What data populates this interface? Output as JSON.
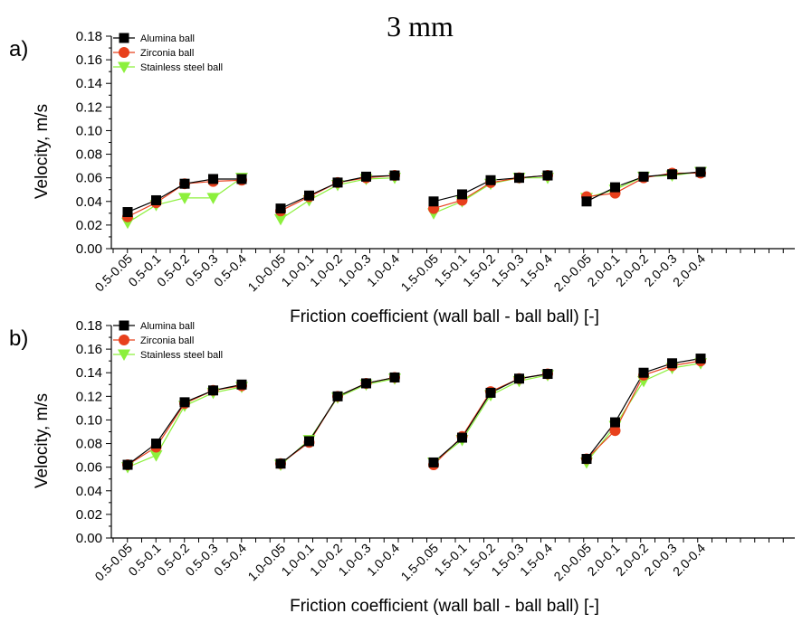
{
  "figure": {
    "title": "3 mm"
  },
  "chart_data": [
    {
      "type": "line",
      "panel_label": "a)",
      "title": "3 mm",
      "xlabel": "Friction coefficient (wall ball - ball ball) [-]",
      "ylabel": "Velocity, m/s",
      "ylim": [
        0,
        0.18
      ],
      "yticks": [
        "0.00",
        "0.02",
        "0.04",
        "0.06",
        "0.08",
        "0.10",
        "0.12",
        "0.14",
        "0.16",
        "0.18"
      ],
      "legend_position": "top-left",
      "grid": false,
      "groups": [
        [
          "0.5-0.05",
          "0.5-0.1",
          "0.5-0.2",
          "0.5-0.3",
          "0.5-0.4"
        ],
        [
          "1.0-0.05",
          "1.0-0.1",
          "1.0-0.2",
          "1.0-0.3",
          "1.0-0.4"
        ],
        [
          "1.5-0.05",
          "1.5-0.1",
          "1.5-0.2",
          "1.5-0.3",
          "1.5-0.4"
        ],
        [
          "2.0-0.05",
          "2.0-0.1",
          "2.0-0.2",
          "2.0-0.3",
          "2.0-0.4"
        ]
      ],
      "series": [
        {
          "name": "Alumina ball",
          "color": "#000000",
          "marker": "square",
          "values": [
            [
              0.031,
              0.041,
              0.055,
              0.059,
              0.059
            ],
            [
              0.034,
              0.045,
              0.056,
              0.061,
              0.062
            ],
            [
              0.04,
              0.046,
              0.058,
              0.06,
              0.062
            ],
            [
              0.04,
              0.052,
              0.061,
              0.063,
              0.065
            ]
          ]
        },
        {
          "name": "Zirconia ball",
          "color": "#e8401c",
          "marker": "circle",
          "values": [
            [
              0.027,
              0.039,
              0.055,
              0.057,
              0.058
            ],
            [
              0.032,
              0.044,
              0.056,
              0.06,
              0.062
            ],
            [
              0.034,
              0.041,
              0.056,
              0.06,
              0.062
            ],
            [
              0.044,
              0.047,
              0.06,
              0.064,
              0.064
            ]
          ]
        },
        {
          "name": "Stainless steel ball",
          "color": "#8cf03c",
          "marker": "triangle-down",
          "values": [
            [
              0.022,
              0.037,
              0.043,
              0.043,
              0.06
            ],
            [
              0.025,
              0.041,
              0.054,
              0.059,
              0.06
            ],
            [
              0.03,
              0.04,
              0.055,
              0.06,
              0.06
            ],
            [
              0.043,
              0.05,
              0.061,
              0.062,
              0.065
            ]
          ]
        }
      ]
    },
    {
      "type": "line",
      "panel_label": "b)",
      "xlabel": "Friction coefficient (wall ball - ball ball) [-]",
      "ylabel": "Velocity, m/s",
      "ylim": [
        0,
        0.18
      ],
      "yticks": [
        "0.00",
        "0.02",
        "0.04",
        "0.06",
        "0.08",
        "0.10",
        "0.12",
        "0.14",
        "0.16",
        "0.18"
      ],
      "legend_position": "top-left",
      "grid": false,
      "groups": [
        [
          "0.5-0.05",
          "0.5-0.1",
          "0.5-0.2",
          "0.5-0.3",
          "0.5-0.4"
        ],
        [
          "1.0-0.05",
          "1.0-0.1",
          "1.0-0.2",
          "1.0-0.3",
          "1.0-0.4"
        ],
        [
          "1.5-0.05",
          "1.5-0.1",
          "1.5-0.2",
          "1.5-0.3",
          "1.5-0.4"
        ],
        [
          "2.0-0.05",
          "2.0-0.1",
          "2.0-0.2",
          "2.0-0.3",
          "2.0-0.4"
        ]
      ],
      "series": [
        {
          "name": "Alumina ball",
          "color": "#000000",
          "marker": "square",
          "values": [
            [
              0.062,
              0.08,
              0.115,
              0.125,
              0.13
            ],
            [
              0.063,
              0.082,
              0.12,
              0.131,
              0.136
            ],
            [
              0.064,
              0.085,
              0.123,
              0.135,
              0.139
            ],
            [
              0.067,
              0.098,
              0.14,
              0.148,
              0.152
            ]
          ]
        },
        {
          "name": "Zirconia ball",
          "color": "#e8401c",
          "marker": "circle",
          "values": [
            [
              0.062,
              0.077,
              0.114,
              0.125,
              0.129
            ],
            [
              0.063,
              0.081,
              0.12,
              0.131,
              0.136
            ],
            [
              0.062,
              0.086,
              0.124,
              0.135,
              0.139
            ],
            [
              0.067,
              0.091,
              0.138,
              0.146,
              0.15
            ]
          ]
        },
        {
          "name": "Stainless steel ball",
          "color": "#8cf03c",
          "marker": "triangle-down",
          "values": [
            [
              0.06,
              0.07,
              0.112,
              0.123,
              0.128
            ],
            [
              0.062,
              0.083,
              0.119,
              0.13,
              0.135
            ],
            [
              0.064,
              0.083,
              0.121,
              0.133,
              0.138
            ],
            [
              0.064,
              0.095,
              0.133,
              0.144,
              0.148
            ]
          ]
        }
      ]
    }
  ]
}
